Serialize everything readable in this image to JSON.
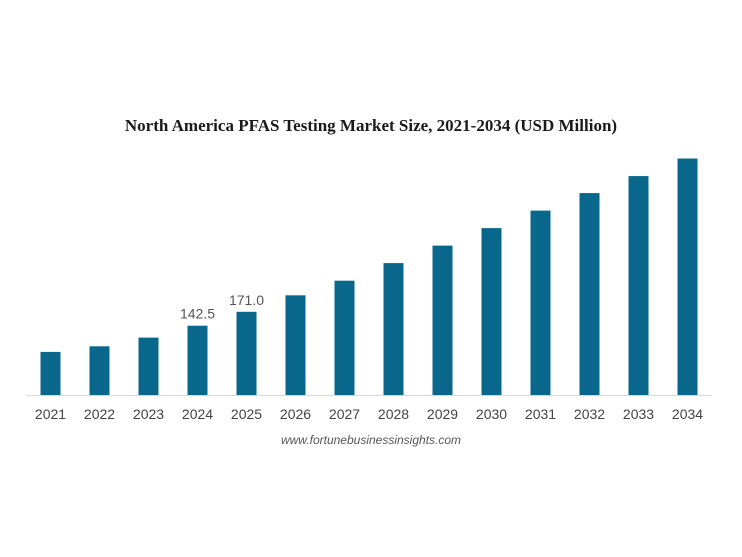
{
  "chart_data": {
    "type": "bar",
    "title": "North America PFAS Testing Market Size, 2021-2034 (USD Million)",
    "categories": [
      "2021",
      "2022",
      "2023",
      "2024",
      "2025",
      "2026",
      "2027",
      "2028",
      "2029",
      "2030",
      "2031",
      "2032",
      "2033",
      "2034"
    ],
    "values": [
      88.5,
      100.0,
      118.0,
      142.5,
      171.0,
      205.0,
      235.0,
      271.0,
      307.0,
      343.0,
      379.0,
      415.0,
      450.0,
      486.0
    ],
    "data_labels": [
      {
        "category": "2024",
        "text": "142.5"
      },
      {
        "category": "2025",
        "text": "171.0"
      }
    ],
    "ylim": [
      0,
      520
    ],
    "xlabel": "",
    "ylabel": "",
    "grid": false,
    "bar_color": "#08678a"
  },
  "source": "www.fortunebusinessinsights.com"
}
